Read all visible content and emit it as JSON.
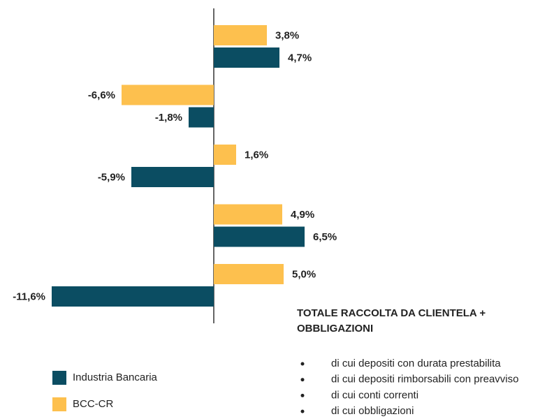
{
  "chart_data": {
    "type": "hbar",
    "categories": [
      "TOTALE RACCOLTA DA CLIENTELA + OBBLIGAZIONI",
      "di cui depositi con durata prestabilita",
      "di cui depositi rimborsabili con preavviso",
      "di cui conti correnti",
      "di cui obbligazioni"
    ],
    "series": [
      {
        "name": "BCC-CR",
        "color": "#fdc04e",
        "values": [
          3.8,
          -6.6,
          1.6,
          4.9,
          5.0
        ],
        "value_labels": [
          "3,8%",
          "-6,6%",
          "1,6%",
          "4,9%",
          "5,0%"
        ]
      },
      {
        "name": "Industria Bancaria",
        "color": "#0b4d62",
        "values": [
          4.7,
          -1.8,
          -5.9,
          6.5,
          -11.6
        ],
        "value_labels": [
          "4,7%",
          "-1,8%",
          "-5,9%",
          "6,5%",
          "-11,6%"
        ]
      }
    ]
  }
}
